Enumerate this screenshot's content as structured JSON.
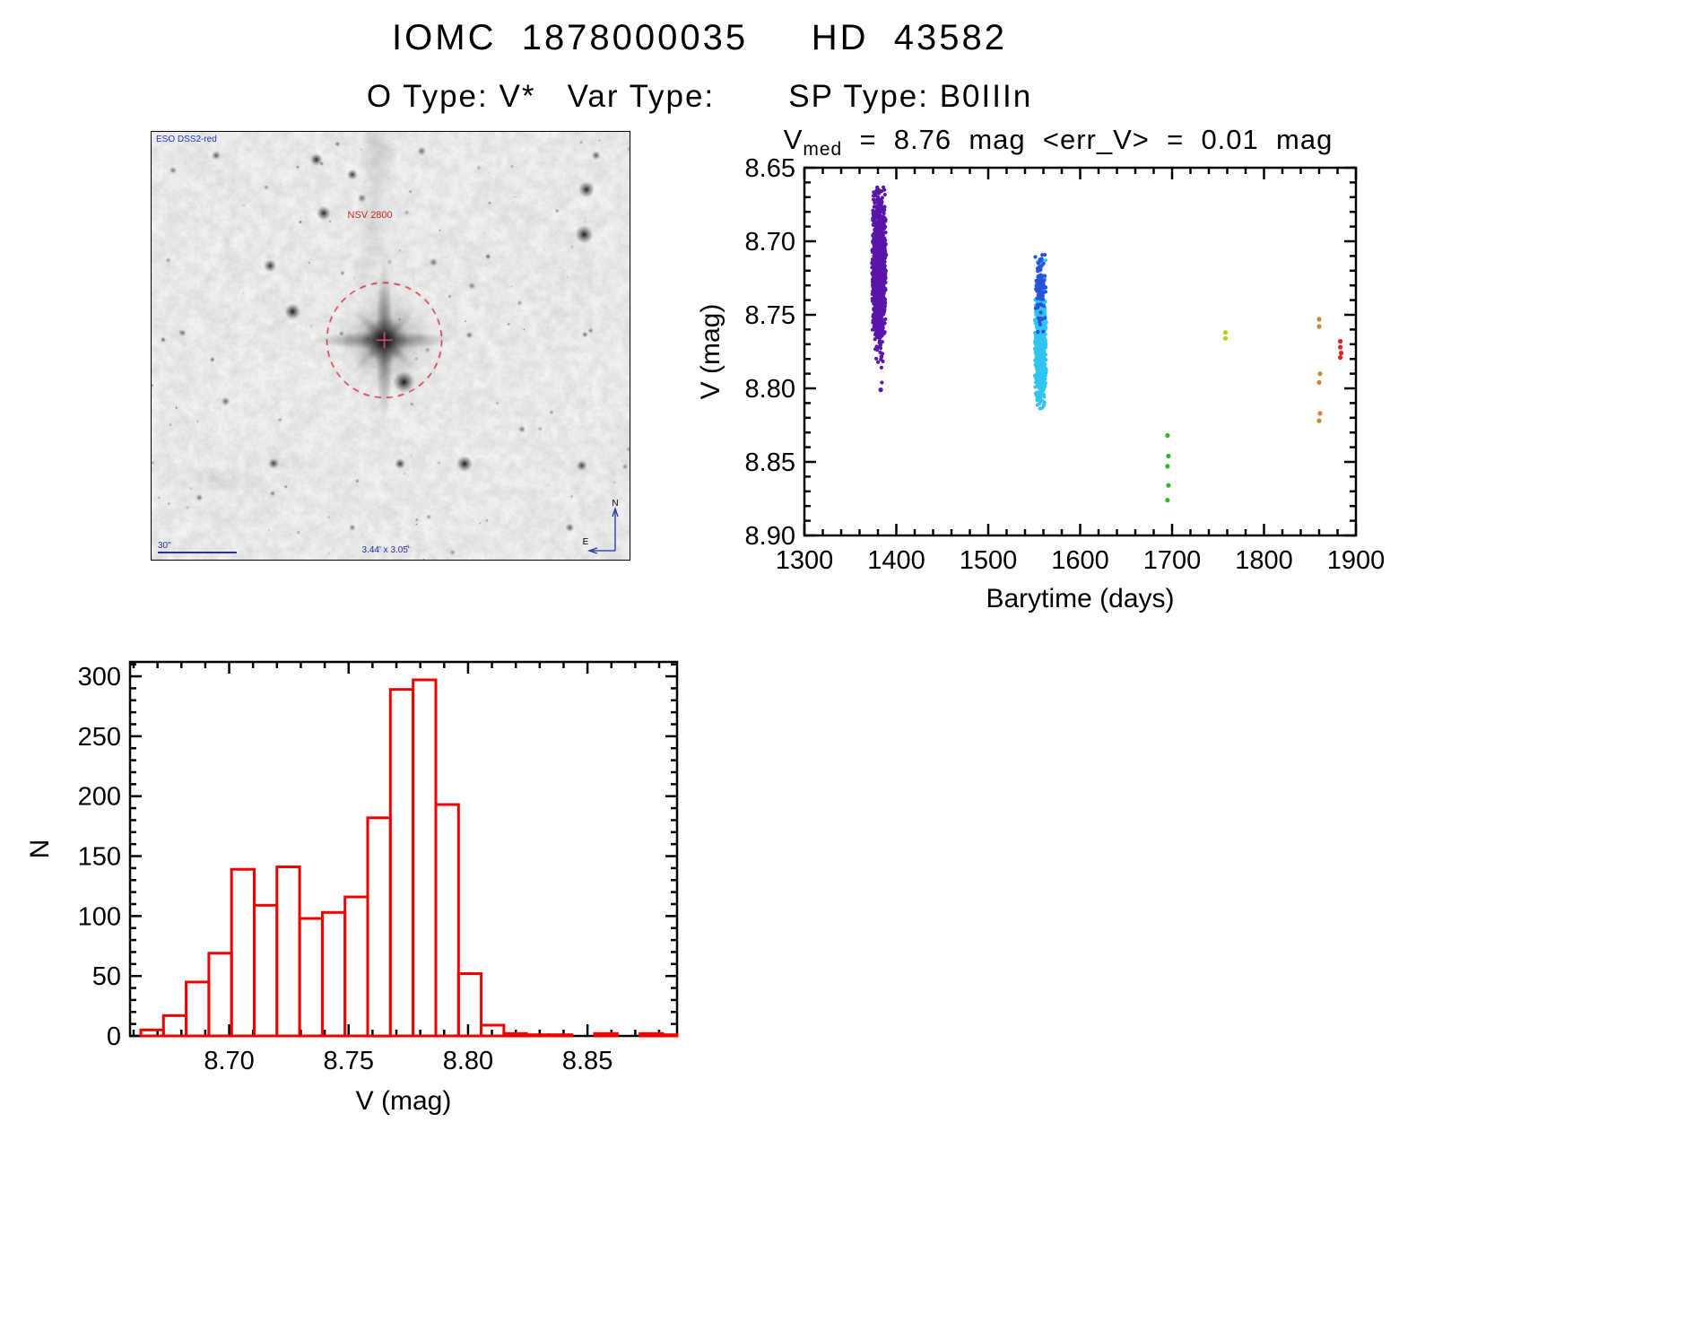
{
  "header": {
    "title": "IOMC  1878000035     HD  43582",
    "subtitle": "O Type: V*   Var Type:       SP Type: B0IIIn"
  },
  "finder": {
    "survey": "ESO DSS2-red",
    "star_label": "NSV 2800",
    "scale_label": "30\"",
    "fov_label": "3.44' x 3.05'",
    "compass_n": "N",
    "compass_e": "E"
  },
  "chart_data": [
    {
      "id": "light_curve",
      "type": "scatter",
      "title": {
        "v": "V",
        "sub": "med",
        "rest": "  =  8.76  mag  <err_V>  =  0.01  mag"
      },
      "xlabel": "Barytime (days)",
      "ylabel": "V (mag)",
      "xlim": [
        1300,
        1900
      ],
      "ylim_top": 8.65,
      "ylim_bottom": 8.9,
      "x_minor_step": 20,
      "y_minor_step": 0.01,
      "xticks": [
        {
          "v": 1300,
          "label": "1300"
        },
        {
          "v": 1400,
          "label": "1400"
        },
        {
          "v": 1500,
          "label": "1500"
        },
        {
          "v": 1600,
          "label": "1600"
        },
        {
          "v": 1700,
          "label": "1700"
        },
        {
          "v": 1800,
          "label": "1800"
        },
        {
          "v": 1900,
          "label": "1900"
        }
      ],
      "yticks": [
        {
          "v": 8.65,
          "label": "8.65"
        },
        {
          "v": 8.7,
          "label": "8.70"
        },
        {
          "v": 8.75,
          "label": "8.75"
        },
        {
          "v": 8.8,
          "label": "8.80"
        },
        {
          "v": 8.85,
          "label": "8.85"
        },
        {
          "v": 8.9,
          "label": "8.90"
        }
      ],
      "clusters": [
        {
          "name": "epoch-1-purple",
          "color": "#5a16a8",
          "count": 1500,
          "x_center": 1381,
          "x_halfwidth": 8,
          "y_mean": 8.718,
          "y_sigma": 0.023,
          "y_min": 8.663,
          "y_max": 8.802,
          "seed": 42
        },
        {
          "name": "epoch-2-cyan",
          "color": "#30c4f0",
          "count": 950,
          "x_center": 1557,
          "x_halfwidth": 6.5,
          "y_mean": 8.77,
          "y_sigma": 0.018,
          "y_min": 8.706,
          "y_max": 8.814,
          "seed": 7
        },
        {
          "name": "epoch-2-blue",
          "color": "#2a52d8",
          "count": 90,
          "x_center": 1557,
          "x_halfwidth": 6,
          "y_mean": 8.728,
          "y_sigma": 0.013,
          "y_min": 8.708,
          "y_max": 8.8,
          "seed": 13
        }
      ],
      "points": [
        {
          "x": 1381,
          "y": 8.667,
          "color": "#5a16a8"
        },
        {
          "x": 1383,
          "y": 8.801,
          "color": "#5a16a8"
        },
        {
          "x": 1695,
          "y": 8.832,
          "color": "#2cb82c"
        },
        {
          "x": 1696,
          "y": 8.846,
          "color": "#2cb82c"
        },
        {
          "x": 1695,
          "y": 8.853,
          "color": "#2cb82c"
        },
        {
          "x": 1696,
          "y": 8.866,
          "color": "#2cb82c"
        },
        {
          "x": 1695,
          "y": 8.876,
          "color": "#2cb82c"
        },
        {
          "x": 1758,
          "y": 8.762,
          "color": "#a9d411"
        },
        {
          "x": 1758,
          "y": 8.766,
          "color": "#a9d411"
        },
        {
          "x": 1860,
          "y": 8.753,
          "color": "#d08a2e"
        },
        {
          "x": 1860,
          "y": 8.758,
          "color": "#d08a2e"
        },
        {
          "x": 1861,
          "y": 8.79,
          "color": "#d08a2e"
        },
        {
          "x": 1860,
          "y": 8.796,
          "color": "#d08a2e"
        },
        {
          "x": 1861,
          "y": 8.817,
          "color": "#d08a2e"
        },
        {
          "x": 1860,
          "y": 8.822,
          "color": "#d08a2e"
        },
        {
          "x": 1883,
          "y": 8.768,
          "color": "#e82222"
        },
        {
          "x": 1883,
          "y": 8.772,
          "color": "#e82222"
        },
        {
          "x": 1884,
          "y": 8.776,
          "color": "#e82222"
        },
        {
          "x": 1883,
          "y": 8.779,
          "color": "#e82222"
        }
      ]
    },
    {
      "id": "histogram",
      "type": "bar",
      "xlabel": "V (mag)",
      "ylabel": "N",
      "color": "#ee0000",
      "xlim": [
        8.6585,
        8.8875
      ],
      "ylim_top": 312,
      "ylim_bottom": 0,
      "x_minor_step": 0.01,
      "y_minor_step": 10,
      "xticks": [
        {
          "v": 8.7,
          "label": "8.70"
        },
        {
          "v": 8.75,
          "label": "8.75"
        },
        {
          "v": 8.8,
          "label": "8.80"
        },
        {
          "v": 8.85,
          "label": "8.85"
        }
      ],
      "yticks": [
        {
          "v": 0,
          "label": "0"
        },
        {
          "v": 50,
          "label": "50"
        },
        {
          "v": 100,
          "label": "100"
        },
        {
          "v": 150,
          "label": "150"
        },
        {
          "v": 200,
          "label": "200"
        },
        {
          "v": 250,
          "label": "250"
        },
        {
          "v": 300,
          "label": "300"
        }
      ],
      "bin_start": 8.663,
      "bin_width": 0.0095,
      "counts": [
        5,
        17,
        45,
        69,
        139,
        109,
        141,
        98,
        103,
        116,
        182,
        289,
        297,
        193,
        52,
        9,
        2,
        1,
        1,
        0,
        2,
        0,
        2,
        1
      ]
    }
  ]
}
